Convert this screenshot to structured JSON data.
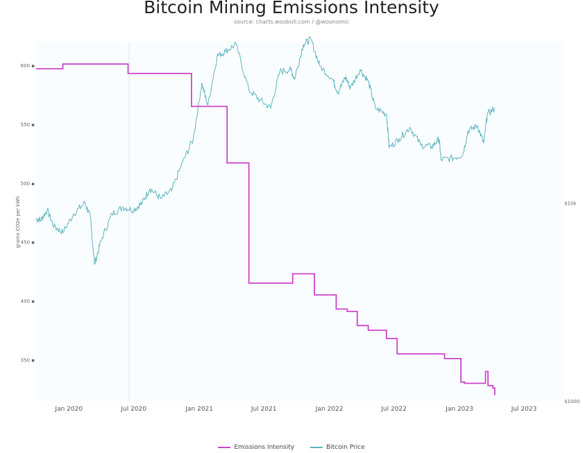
{
  "chart_data": {
    "type": "line",
    "title": "Bitcoin Mining Emissions Intensity",
    "subtitle": "source: charts.woobull.com / @woonomic",
    "ylabel": "grams CO2e per kWh",
    "ylim": [
      315,
      620
    ],
    "y_ticks": [
      "600",
      "550",
      "500",
      "450",
      "400",
      "350"
    ],
    "y_tick_values": [
      600,
      550,
      500,
      450,
      400,
      350
    ],
    "x_ticks": [
      "Jan 2020",
      "Jul 2020",
      "Jan 2021",
      "Jul 2021",
      "Jan 2022",
      "Jul 2022",
      "Jan 2023",
      "Jul 2023"
    ],
    "x_tick_values": [
      "2020-01-01",
      "2020-07-01",
      "2021-01-01",
      "2021-07-01",
      "2022-01-01",
      "2022-07-01",
      "2023-01-01",
      "2023-07-01"
    ],
    "y2_ticks": [
      "$10k",
      "$1000"
    ],
    "legend_position": "bottom",
    "grid": false,
    "series": [
      {
        "name": "Emissions Intensity",
        "color": "#cc44cc",
        "step": true,
        "points": [
          [
            "2019-10-01",
            597
          ],
          [
            "2019-12-15",
            597
          ],
          [
            "2019-12-15",
            601
          ],
          [
            "2020-06-15",
            601
          ],
          [
            "2020-06-15",
            593
          ],
          [
            "2020-12-10",
            593
          ],
          [
            "2020-12-10",
            565
          ],
          [
            "2021-03-20",
            565
          ],
          [
            "2021-03-20",
            517
          ],
          [
            "2021-05-20",
            517
          ],
          [
            "2021-05-20",
            415
          ],
          [
            "2021-09-20",
            415
          ],
          [
            "2021-09-20",
            423
          ],
          [
            "2021-11-20",
            423
          ],
          [
            "2021-11-20",
            405
          ],
          [
            "2022-01-20",
            405
          ],
          [
            "2022-01-20",
            393
          ],
          [
            "2022-02-20",
            393
          ],
          [
            "2022-02-20",
            391
          ],
          [
            "2022-03-20",
            391
          ],
          [
            "2022-03-20",
            379
          ],
          [
            "2022-04-20",
            379
          ],
          [
            "2022-04-20",
            375
          ],
          [
            "2022-06-10",
            375
          ],
          [
            "2022-06-10",
            368
          ],
          [
            "2022-07-10",
            368
          ],
          [
            "2022-07-10",
            355
          ],
          [
            "2022-11-20",
            355
          ],
          [
            "2022-11-20",
            351
          ],
          [
            "2023-01-05",
            351
          ],
          [
            "2023-01-05",
            331
          ],
          [
            "2023-01-15",
            331
          ],
          [
            "2023-01-15",
            330
          ],
          [
            "2023-03-15",
            330
          ],
          [
            "2023-03-15",
            340
          ],
          [
            "2023-03-22",
            340
          ],
          [
            "2023-03-22",
            328
          ],
          [
            "2023-04-05",
            328
          ],
          [
            "2023-04-05",
            326
          ],
          [
            "2023-04-10",
            326
          ],
          [
            "2023-04-10",
            320
          ]
        ]
      },
      {
        "name": "Bitcoin Price",
        "color": "#5ab4be",
        "axis": "right",
        "scale": "log",
        "y2lim": [
          1000,
          65000
        ],
        "points": [
          [
            "2019-10-01",
            8300
          ],
          [
            "2019-10-15",
            8200
          ],
          [
            "2019-11-01",
            9200
          ],
          [
            "2019-11-20",
            7600
          ],
          [
            "2019-12-15",
            7100
          ],
          [
            "2020-01-15",
            8800
          ],
          [
            "2020-02-15",
            10000
          ],
          [
            "2020-03-01",
            8500
          ],
          [
            "2020-03-13",
            4900
          ],
          [
            "2020-04-01",
            6500
          ],
          [
            "2020-05-01",
            8800
          ],
          [
            "2020-06-01",
            9500
          ],
          [
            "2020-07-01",
            9200
          ],
          [
            "2020-07-25",
            10000
          ],
          [
            "2020-08-15",
            11800
          ],
          [
            "2020-09-15",
            10500
          ],
          [
            "2020-10-15",
            11500
          ],
          [
            "2020-11-15",
            16000
          ],
          [
            "2020-12-15",
            21000
          ],
          [
            "2021-01-08",
            40000
          ],
          [
            "2021-01-25",
            31000
          ],
          [
            "2021-02-20",
            55000
          ],
          [
            "2021-03-15",
            58000
          ],
          [
            "2021-04-14",
            63000
          ],
          [
            "2021-05-20",
            37000
          ],
          [
            "2021-06-20",
            33000
          ],
          [
            "2021-07-20",
            30000
          ],
          [
            "2021-08-15",
            46000
          ],
          [
            "2021-09-15",
            47000
          ],
          [
            "2021-09-25",
            42000
          ],
          [
            "2021-10-20",
            63000
          ],
          [
            "2021-11-10",
            67000
          ],
          [
            "2021-12-05",
            49000
          ],
          [
            "2022-01-10",
            42000
          ],
          [
            "2022-01-25",
            36000
          ],
          [
            "2022-02-15",
            43000
          ],
          [
            "2022-03-01",
            38000
          ],
          [
            "2022-03-28",
            47000
          ],
          [
            "2022-04-20",
            41000
          ],
          [
            "2022-05-10",
            30000
          ],
          [
            "2022-06-10",
            28000
          ],
          [
            "2022-06-18",
            19000
          ],
          [
            "2022-07-15",
            21000
          ],
          [
            "2022-08-15",
            24000
          ],
          [
            "2022-09-15",
            19500
          ],
          [
            "2022-10-15",
            19200
          ],
          [
            "2022-11-05",
            21000
          ],
          [
            "2022-11-10",
            16500
          ],
          [
            "2022-12-15",
            16800
          ],
          [
            "2023-01-10",
            17500
          ],
          [
            "2023-01-25",
            23000
          ],
          [
            "2023-02-20",
            24500
          ],
          [
            "2023-03-10",
            20000
          ],
          [
            "2023-03-20",
            28000
          ],
          [
            "2023-04-10",
            30000
          ]
        ]
      }
    ]
  }
}
